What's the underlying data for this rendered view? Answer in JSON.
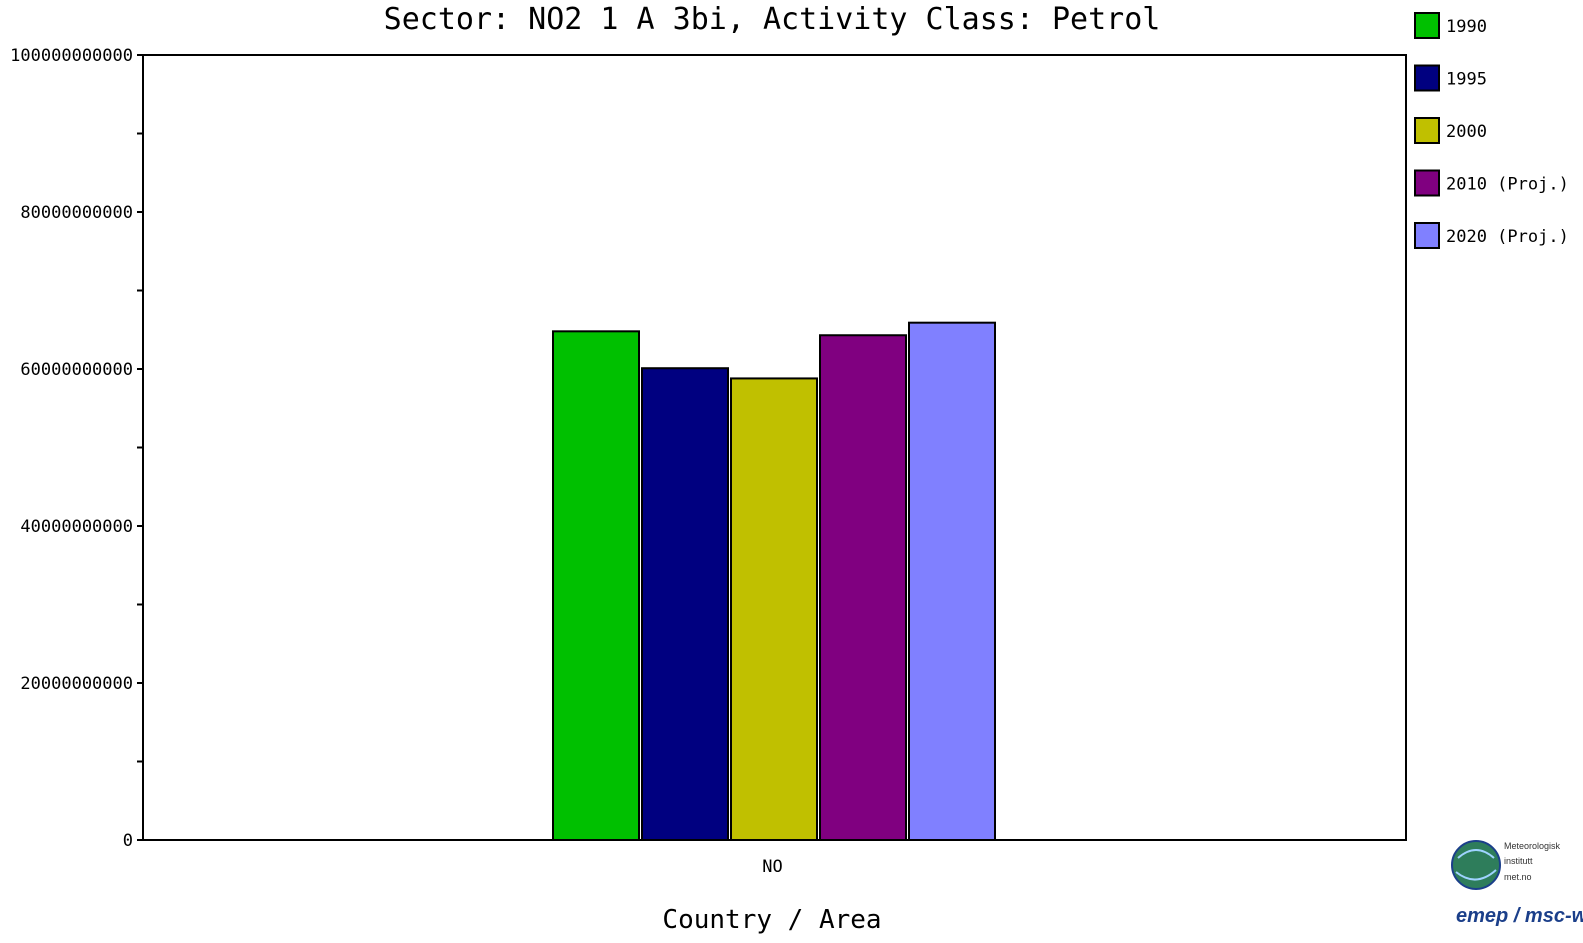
{
  "chart_data": {
    "type": "bar",
    "title": "Sector: NO2 1 A 3bi, Activity Class: Petrol",
    "xlabel": "Country / Area",
    "ylabel": "",
    "categories": [
      "NO"
    ],
    "ylim": [
      0,
      100000000000
    ],
    "yticks": [
      0,
      20000000000,
      40000000000,
      60000000000,
      80000000000,
      100000000000
    ],
    "ytick_labels": [
      "0",
      "20000000000",
      "40000000000",
      "60000000000",
      "80000000000",
      "100000000000"
    ],
    "grid": false,
    "legend_position": "right",
    "series": [
      {
        "name": "1990",
        "values": [
          64800000000
        ],
        "color": "#00c000"
      },
      {
        "name": "1995",
        "values": [
          60100000000
        ],
        "color": "#000080"
      },
      {
        "name": "2000",
        "values": [
          58800000000
        ],
        "color": "#c0c000"
      },
      {
        "name": "2010 (Proj.)",
        "values": [
          64300000000
        ],
        "color": "#800080"
      },
      {
        "name": "2020 (Proj.)",
        "values": [
          65900000000
        ],
        "color": "#8080ff"
      }
    ]
  },
  "logo": {
    "line1": "Meteorologisk",
    "line2": "institutt",
    "line3": "met.no",
    "brand": "emep / msc-w"
  }
}
